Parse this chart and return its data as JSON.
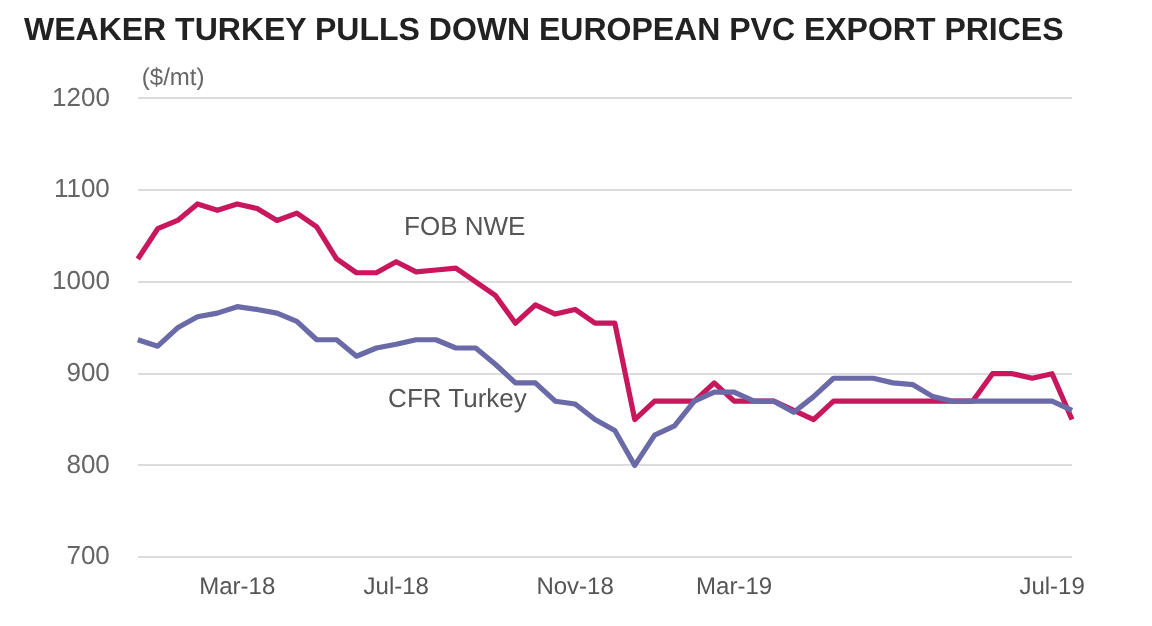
{
  "chart_data": {
    "type": "line",
    "title": "WEAKER TURKEY PULLS DOWN EUROPEAN PVC EXPORT PRICES",
    "ylabel": "($/mt)",
    "categories": [
      null,
      null,
      null,
      null,
      null,
      "Mar-18",
      null,
      null,
      null,
      null,
      null,
      null,
      null,
      "Jul-18",
      null,
      null,
      null,
      null,
      null,
      null,
      null,
      null,
      "Nov-18",
      null,
      null,
      null,
      null,
      null,
      null,
      null,
      "Mar-19",
      null,
      null,
      null,
      null,
      null,
      null,
      null,
      null,
      null,
      null,
      null,
      null,
      null,
      null,
      null,
      "Jul-19",
      null
    ],
    "series": [
      {
        "name": "FOB NWE",
        "color": "#c8175d",
        "values": [
          1025,
          1058,
          1067,
          1085,
          1078,
          1085,
          1080,
          1067,
          1075,
          1060,
          1025,
          1010,
          1010,
          1022,
          1011,
          1013,
          1015,
          1000,
          985,
          955,
          975,
          965,
          970,
          955,
          955,
          850,
          870,
          870,
          870,
          890,
          870,
          870,
          870,
          860,
          850,
          870,
          870,
          870,
          870,
          870,
          870,
          870,
          870,
          900,
          900,
          895,
          900,
          850
        ]
      },
      {
        "name": "CFR Turkey",
        "color": "#6a6aa8",
        "values": [
          937,
          930,
          950,
          962,
          966,
          973,
          970,
          966,
          957,
          937,
          937,
          919,
          928,
          932,
          937,
          937,
          928,
          928,
          910,
          890,
          890,
          870,
          867,
          850,
          838,
          800,
          833,
          843,
          870,
          880,
          880,
          870,
          870,
          858,
          875,
          895,
          895,
          895,
          890,
          888,
          875,
          870,
          870,
          870,
          870,
          870,
          870,
          860
        ]
      }
    ],
    "ylim": [
      700,
      1200
    ],
    "yticks": [
      700,
      800,
      900,
      1000,
      1100,
      1200
    ],
    "grid": "y",
    "legend": false
  }
}
